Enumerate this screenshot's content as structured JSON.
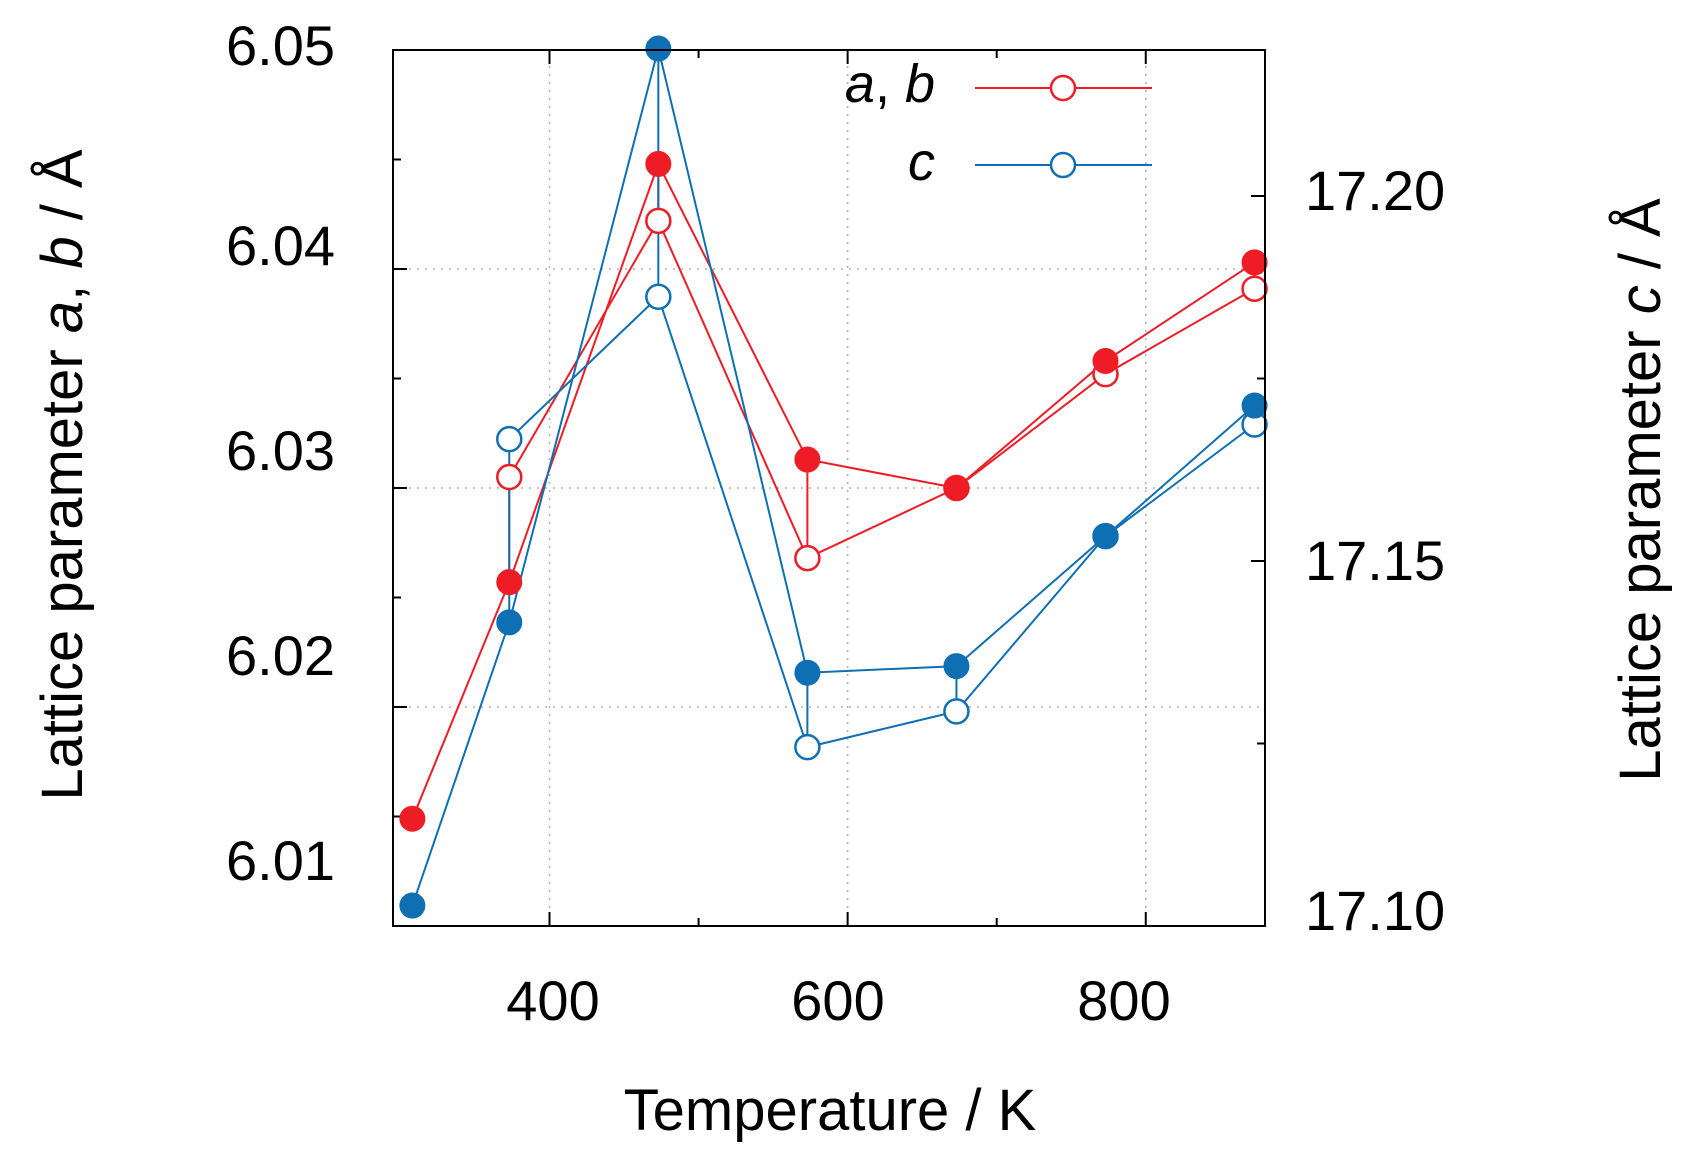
{
  "chart_data": {
    "type": "line",
    "x_axis": {
      "label": "Temperature / K",
      "range": [
        295,
        880
      ],
      "ticks": [
        400,
        600,
        800
      ],
      "minor_ticks": [
        500,
        700
      ]
    },
    "y_left": {
      "label_prefix": "Lattice parameter ",
      "label_a": "a",
      "label_sep": ", ",
      "label_b": "b",
      "label_suffix": " / Å",
      "range": [
        6.01,
        6.05
      ],
      "ticks": [
        "6.01",
        "6.02",
        "6.03",
        "6.04",
        "6.05"
      ]
    },
    "y_right": {
      "label_prefix": "Lattice parameter ",
      "label_c": "c",
      "label_suffix": " / Å",
      "range": [
        17.1,
        17.22
      ],
      "ticks": [
        "17.10",
        "17.15",
        "17.20"
      ],
      "minor_ticks": [
        17.125,
        17.175
      ]
    },
    "legend": [
      {
        "label_a": "a",
        "label_sep": ", ",
        "label_b": "b",
        "color": "#ee1c25"
      },
      {
        "label": "c",
        "color": "#0f6fb3"
      }
    ],
    "series": [
      {
        "name": "a, b (closed)",
        "axis": "left",
        "color": "#ee1c25",
        "marker": "filled",
        "x": [
          308,
          373,
          473,
          573,
          673,
          773,
          873
        ],
        "y": [
          6.0149,
          6.0257,
          6.0448,
          6.0313,
          6.03,
          6.0358,
          6.0403
        ]
      },
      {
        "name": "a, b (open)",
        "axis": "left",
        "color": "#ee1c25",
        "marker": "open",
        "x": [
          373,
          473,
          573,
          673,
          773,
          873
        ],
        "y": [
          6.0305,
          6.0422,
          6.0268,
          6.03,
          6.0352,
          6.0391
        ]
      },
      {
        "name": "c (closed)",
        "axis": "right",
        "color": "#0f6fb3",
        "marker": "filled",
        "x": [
          308,
          373,
          473,
          573,
          673,
          773,
          873
        ],
        "y": [
          17.1028,
          17.1416,
          17.2202,
          17.1347,
          17.1356,
          17.1534,
          17.1713
        ]
      },
      {
        "name": "c (open)",
        "axis": "right",
        "color": "#0f6fb3",
        "marker": "open",
        "x": [
          373,
          473,
          573,
          673,
          773,
          873
        ],
        "y": [
          17.1667,
          17.1862,
          17.1245,
          17.1294,
          17.1534,
          17.1687
        ]
      }
    ],
    "connectors": [
      {
        "color": "#ee1c25",
        "axis": "left",
        "x": 373,
        "y": [
          6.0257,
          6.0305
        ]
      },
      {
        "color": "#ee1c25",
        "axis": "left",
        "x": 473,
        "y": [
          6.0448,
          6.0422
        ]
      },
      {
        "color": "#ee1c25",
        "axis": "left",
        "x": 573,
        "y": [
          6.0313,
          6.0268
        ]
      },
      {
        "color": "#ee1c25",
        "axis": "left",
        "x": 773,
        "y": [
          6.0358,
          6.0352
        ]
      },
      {
        "color": "#ee1c25",
        "axis": "left",
        "x": 873,
        "y": [
          6.0403,
          6.0391
        ]
      },
      {
        "color": "#0f6fb3",
        "axis": "right",
        "x": 373,
        "y": [
          17.1416,
          17.1667
        ]
      },
      {
        "color": "#0f6fb3",
        "axis": "right",
        "x": 473,
        "y": [
          17.2202,
          17.1862
        ]
      },
      {
        "color": "#0f6fb3",
        "axis": "right",
        "x": 573,
        "y": [
          17.1347,
          17.1245
        ]
      },
      {
        "color": "#0f6fb3",
        "axis": "right",
        "x": 673,
        "y": [
          17.1356,
          17.1294
        ]
      },
      {
        "color": "#0f6fb3",
        "axis": "right",
        "x": 873,
        "y": [
          17.1713,
          17.1687
        ]
      }
    ]
  }
}
